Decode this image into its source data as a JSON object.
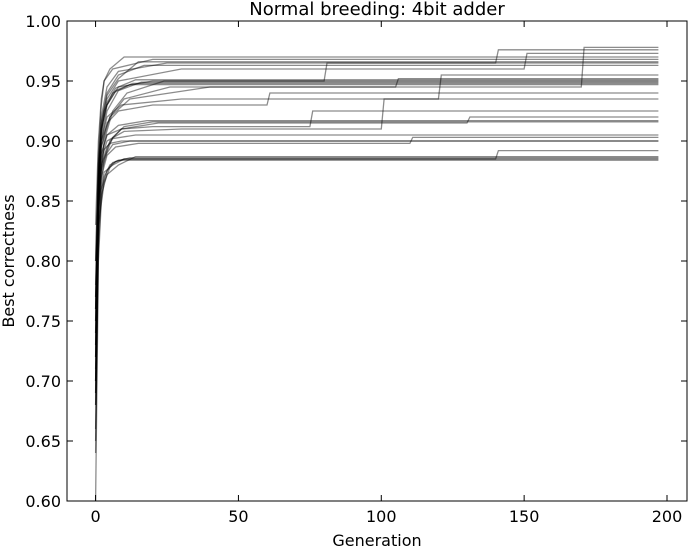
{
  "chart_data": {
    "type": "line",
    "title": "Normal breeding: 4bit adder",
    "xlabel": "Generation",
    "ylabel": "Best correctness",
    "xlim": [
      -10,
      207
    ],
    "ylim": [
      0.6,
      1.0
    ],
    "xticks": [
      0,
      50,
      100,
      150,
      200
    ],
    "yticks": [
      0.6,
      0.65,
      0.7,
      0.75,
      0.8,
      0.85,
      0.9,
      0.95,
      1.0
    ],
    "xtick_labels": [
      "0",
      "50",
      "100",
      "150",
      "200"
    ],
    "ytick_labels": [
      "0.60",
      "0.65",
      "0.70",
      "0.75",
      "0.80",
      "0.85",
      "0.90",
      "0.95",
      "1.00"
    ],
    "grid": false,
    "legend": "none",
    "line_color": "#000000",
    "line_opacity": 0.45,
    "series": [
      {
        "x": [
          0,
          1,
          2,
          3,
          5,
          8,
          197
        ],
        "y": [
          0.6,
          0.8,
          0.85,
          0.87,
          0.88,
          0.884,
          0.884
        ]
      },
      {
        "x": [
          0,
          1,
          2,
          4,
          6,
          10,
          197
        ],
        "y": [
          0.68,
          0.82,
          0.86,
          0.875,
          0.882,
          0.885,
          0.885
        ]
      },
      {
        "x": [
          0,
          1,
          3,
          5,
          7,
          12,
          197
        ],
        "y": [
          0.7,
          0.83,
          0.865,
          0.878,
          0.883,
          0.886,
          0.886
        ]
      },
      {
        "x": [
          0,
          1,
          2,
          4,
          8,
          14,
          197
        ],
        "y": [
          0.65,
          0.81,
          0.855,
          0.872,
          0.88,
          0.887,
          0.887
        ]
      },
      {
        "x": [
          0,
          1,
          2,
          3,
          6,
          10,
          140,
          141,
          197
        ],
        "y": [
          0.64,
          0.83,
          0.86,
          0.874,
          0.88,
          0.885,
          0.885,
          0.892,
          0.892
        ]
      },
      {
        "x": [
          0,
          1,
          2,
          4,
          6,
          12,
          197
        ],
        "y": [
          0.72,
          0.84,
          0.875,
          0.89,
          0.897,
          0.9,
          0.9
        ]
      },
      {
        "x": [
          0,
          1,
          2,
          3,
          5,
          9,
          197
        ],
        "y": [
          0.69,
          0.845,
          0.878,
          0.893,
          0.898,
          0.9,
          0.9
        ]
      },
      {
        "x": [
          0,
          1,
          2,
          4,
          7,
          15,
          110,
          111,
          197
        ],
        "y": [
          0.66,
          0.835,
          0.87,
          0.888,
          0.895,
          0.898,
          0.898,
          0.903,
          0.903
        ]
      },
      {
        "x": [
          0,
          1,
          2,
          4,
          6,
          14,
          197
        ],
        "y": [
          0.75,
          0.85,
          0.88,
          0.895,
          0.902,
          0.905,
          0.905
        ]
      },
      {
        "x": [
          0,
          1,
          3,
          6,
          10,
          20,
          197
        ],
        "y": [
          0.7,
          0.845,
          0.885,
          0.903,
          0.912,
          0.916,
          0.916
        ]
      },
      {
        "x": [
          0,
          1,
          2,
          4,
          8,
          18,
          197
        ],
        "y": [
          0.73,
          0.85,
          0.888,
          0.905,
          0.913,
          0.917,
          0.917
        ]
      },
      {
        "x": [
          0,
          1,
          2,
          5,
          9,
          22,
          130,
          131,
          197
        ],
        "y": [
          0.68,
          0.84,
          0.878,
          0.9,
          0.91,
          0.915,
          0.915,
          0.92,
          0.92
        ]
      },
      {
        "x": [
          0,
          1,
          2,
          4,
          9,
          20,
          75,
          76,
          197
        ],
        "y": [
          0.76,
          0.86,
          0.89,
          0.905,
          0.91,
          0.912,
          0.912,
          0.925,
          0.925
        ]
      },
      {
        "x": [
          0,
          1,
          2,
          4,
          10,
          30,
          100,
          101,
          197
        ],
        "y": [
          0.71,
          0.85,
          0.885,
          0.9,
          0.908,
          0.91,
          0.91,
          0.935,
          0.935
        ]
      },
      {
        "x": [
          0,
          1,
          2,
          4,
          8,
          20,
          60,
          61,
          197
        ],
        "y": [
          0.74,
          0.86,
          0.895,
          0.915,
          0.925,
          0.93,
          0.93,
          0.94,
          0.94
        ]
      },
      {
        "x": [
          0,
          1,
          2,
          4,
          7,
          13,
          197
        ],
        "y": [
          0.78,
          0.87,
          0.91,
          0.93,
          0.942,
          0.948,
          0.948
        ]
      },
      {
        "x": [
          0,
          1,
          2,
          3,
          6,
          12,
          197
        ],
        "y": [
          0.76,
          0.865,
          0.905,
          0.925,
          0.94,
          0.947,
          0.947
        ]
      },
      {
        "x": [
          0,
          1,
          2,
          4,
          8,
          16,
          197
        ],
        "y": [
          0.72,
          0.86,
          0.9,
          0.925,
          0.942,
          0.949,
          0.949
        ]
      },
      {
        "x": [
          0,
          1,
          3,
          6,
          11,
          24,
          197
        ],
        "y": [
          0.7,
          0.85,
          0.9,
          0.925,
          0.94,
          0.95,
          0.95
        ]
      },
      {
        "x": [
          0,
          1,
          2,
          4,
          7,
          14,
          197
        ],
        "y": [
          0.77,
          0.87,
          0.91,
          0.932,
          0.944,
          0.951,
          0.951
        ]
      },
      {
        "x": [
          0,
          1,
          2,
          5,
          10,
          26,
          105,
          106,
          197
        ],
        "y": [
          0.69,
          0.85,
          0.895,
          0.92,
          0.935,
          0.945,
          0.945,
          0.952,
          0.952
        ]
      },
      {
        "x": [
          0,
          1,
          2,
          4,
          9,
          30,
          120,
          121,
          197
        ],
        "y": [
          0.73,
          0.86,
          0.9,
          0.92,
          0.93,
          0.935,
          0.935,
          0.955,
          0.955
        ]
      },
      {
        "x": [
          0,
          1,
          2,
          4,
          8,
          17,
          197
        ],
        "y": [
          0.8,
          0.88,
          0.915,
          0.94,
          0.955,
          0.963,
          0.963
        ]
      },
      {
        "x": [
          0,
          1,
          2,
          4,
          8,
          20,
          80,
          81,
          197
        ],
        "y": [
          0.76,
          0.87,
          0.905,
          0.93,
          0.945,
          0.95,
          0.95,
          0.965,
          0.965
        ]
      },
      {
        "x": [
          0,
          1,
          2,
          4,
          8,
          15,
          197
        ],
        "y": [
          0.75,
          0.875,
          0.915,
          0.938,
          0.952,
          0.966,
          0.966
        ]
      },
      {
        "x": [
          0,
          1,
          2,
          3,
          6,
          20,
          197
        ],
        "y": [
          0.8,
          0.89,
          0.93,
          0.95,
          0.96,
          0.968,
          0.968
        ]
      },
      {
        "x": [
          0,
          1,
          2,
          3,
          5,
          10,
          197
        ],
        "y": [
          0.83,
          0.9,
          0.935,
          0.95,
          0.96,
          0.97,
          0.97
        ]
      },
      {
        "x": [
          0,
          1,
          2,
          4,
          8,
          30,
          150,
          151,
          197
        ],
        "y": [
          0.74,
          0.87,
          0.91,
          0.935,
          0.95,
          0.96,
          0.96,
          0.973,
          0.973
        ]
      },
      {
        "x": [
          0,
          1,
          2,
          4,
          8,
          25,
          140,
          141,
          197
        ],
        "y": [
          0.77,
          0.88,
          0.92,
          0.945,
          0.958,
          0.965,
          0.965,
          0.976,
          0.976
        ]
      },
      {
        "x": [
          0,
          1,
          2,
          5,
          12,
          40,
          170,
          171,
          197
        ],
        "y": [
          0.72,
          0.86,
          0.9,
          0.92,
          0.935,
          0.945,
          0.945,
          0.978,
          0.978
        ]
      }
    ]
  }
}
